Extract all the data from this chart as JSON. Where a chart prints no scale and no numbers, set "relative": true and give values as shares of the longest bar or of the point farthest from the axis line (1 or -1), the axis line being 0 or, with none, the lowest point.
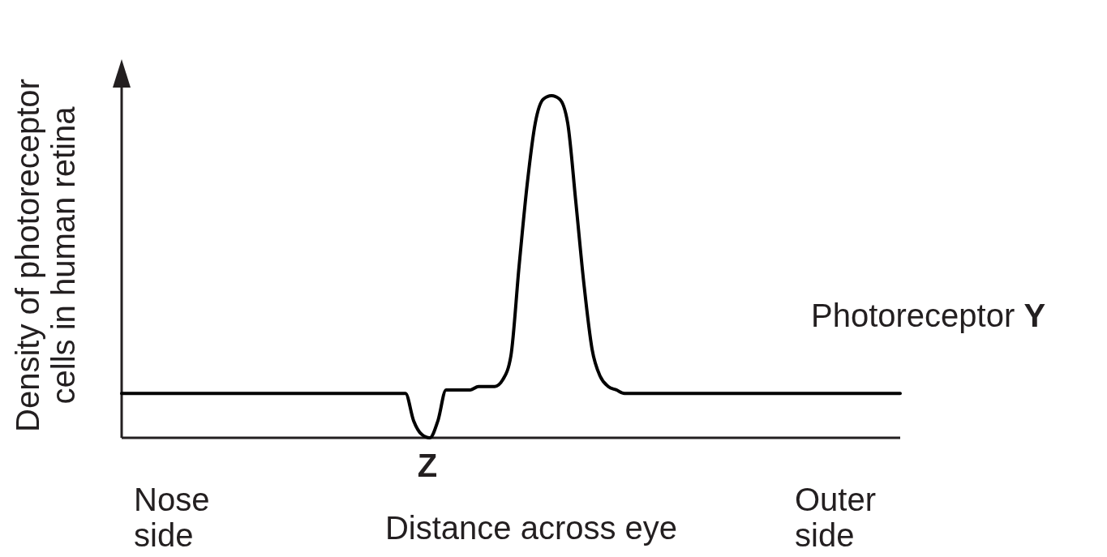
{
  "chart_data": {
    "type": "line",
    "relative": true,
    "xlabel": "Distance across eye",
    "ylabel": "Density of photoreceptor cells in human retina",
    "annotations": [
      "Z",
      "Nose side",
      "Outer side"
    ],
    "categories": [
      null,
      null,
      null,
      null,
      null,
      null,
      null,
      null,
      null,
      null,
      null,
      null,
      null,
      null,
      null,
      null,
      null,
      null,
      null,
      null,
      null,
      null,
      null,
      null,
      null,
      null,
      null,
      null,
      null,
      null,
      null,
      null,
      null,
      null,
      null,
      null,
      null,
      null,
      null,
      null,
      null,
      null,
      null,
      null,
      null,
      null,
      null,
      null,
      null,
      null,
      null,
      null,
      null,
      null,
      null,
      null,
      null,
      null,
      null,
      null,
      null,
      null,
      null,
      null,
      null,
      null,
      null,
      null,
      null,
      null,
      null,
      null,
      null,
      null,
      null,
      null,
      null,
      null,
      null,
      null,
      null,
      null,
      null,
      null,
      null,
      null,
      null,
      null,
      null,
      null,
      null,
      null,
      null,
      null,
      null,
      null,
      null
    ],
    "series": [
      {
        "name": "Photoreceptor Y",
        "color": "#000000",
        "values": [
          0.13,
          0.13,
          0.13,
          0.13,
          0.13,
          0.13,
          0.13,
          0.13,
          0.13,
          0.13,
          0.13,
          0.13,
          0.13,
          0.13,
          0.13,
          0.13,
          0.13,
          0.13,
          0.13,
          0.13,
          0.13,
          0.13,
          0.13,
          0.13,
          0.13,
          0.13,
          0.13,
          0.13,
          0.13,
          0.13,
          0.13,
          0.13,
          0.13,
          0.13,
          0.13,
          0.13,
          0.05,
          0.01,
          0.0,
          0.05,
          0.14,
          0.14,
          0.14,
          0.14,
          0.15,
          0.15,
          0.15,
          0.17,
          0.24,
          0.5,
          0.74,
          0.92,
          0.99,
          1,
          0.99,
          0.92,
          0.69,
          0.45,
          0.26,
          0.18,
          0.15,
          0.14,
          0.13,
          0.13,
          0.13,
          0.13,
          0.13,
          0.13,
          0.13,
          0.13,
          0.13,
          0.13,
          0.13,
          0.13,
          0.13,
          0.13,
          0.13,
          0.13,
          0.13,
          0.13,
          0.13,
          0.13,
          0.13,
          0.13,
          0.13,
          0.13,
          0.13,
          0.13,
          0.13,
          0.13,
          0.13,
          0.13,
          0.13,
          0.13,
          0.13,
          0.13,
          0.13
        ]
      }
    ]
  }
}
